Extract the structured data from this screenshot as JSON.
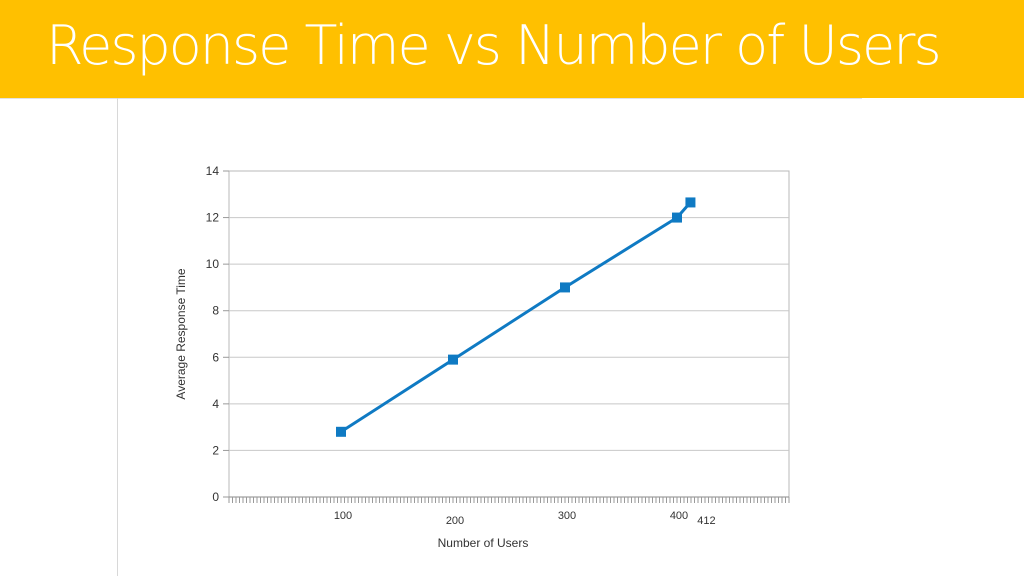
{
  "slide": {
    "title": "Response Time vs Number of Users"
  },
  "chart_data": {
    "type": "line",
    "title": "",
    "xlabel": "Number of Users",
    "ylabel": "Average Response Time",
    "xlim": [
      0,
      500
    ],
    "ylim": [
      0,
      14
    ],
    "y_ticks": [
      0,
      2,
      4,
      6,
      8,
      10,
      12,
      14
    ],
    "x_tick_labels": [
      "100",
      "200",
      "300",
      "400",
      "412"
    ],
    "x_tick_values": [
      100,
      200,
      300,
      400,
      412
    ],
    "grid": "horizontal",
    "legend": "none",
    "series": [
      {
        "color": "#0f7ac3",
        "points": [
          {
            "x": 100,
            "y": 2.8
          },
          {
            "x": 200,
            "y": 5.9
          },
          {
            "x": 300,
            "y": 9.0
          },
          {
            "x": 400,
            "y": 12.0
          },
          {
            "x": 412,
            "y": 12.65
          }
        ]
      }
    ]
  }
}
